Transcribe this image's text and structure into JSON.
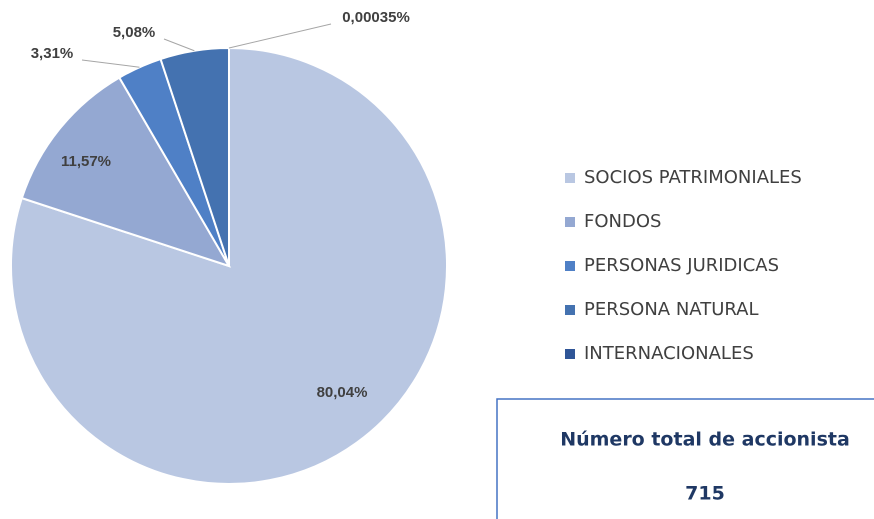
{
  "chart_data": {
    "type": "pie",
    "categories": [
      "SOCIOS PATRIMONIALES",
      "FONDOS",
      "PERSONAS JURIDICAS",
      "PERSONA NATURAL",
      "INTERNACIONALES"
    ],
    "values": [
      80.04,
      11.57,
      3.31,
      5.08,
      0.00035
    ],
    "value_labels": [
      "80,04%",
      "11,57%",
      "3,31%",
      "5,08%",
      "0,00035%"
    ],
    "colors": [
      "#b9c7e2",
      "#94a8d2",
      "#4f80c6",
      "#4472b0",
      "#2f5597"
    ],
    "legend": "right"
  },
  "total_box": {
    "label": "Número total de accionista",
    "value": 715
  }
}
